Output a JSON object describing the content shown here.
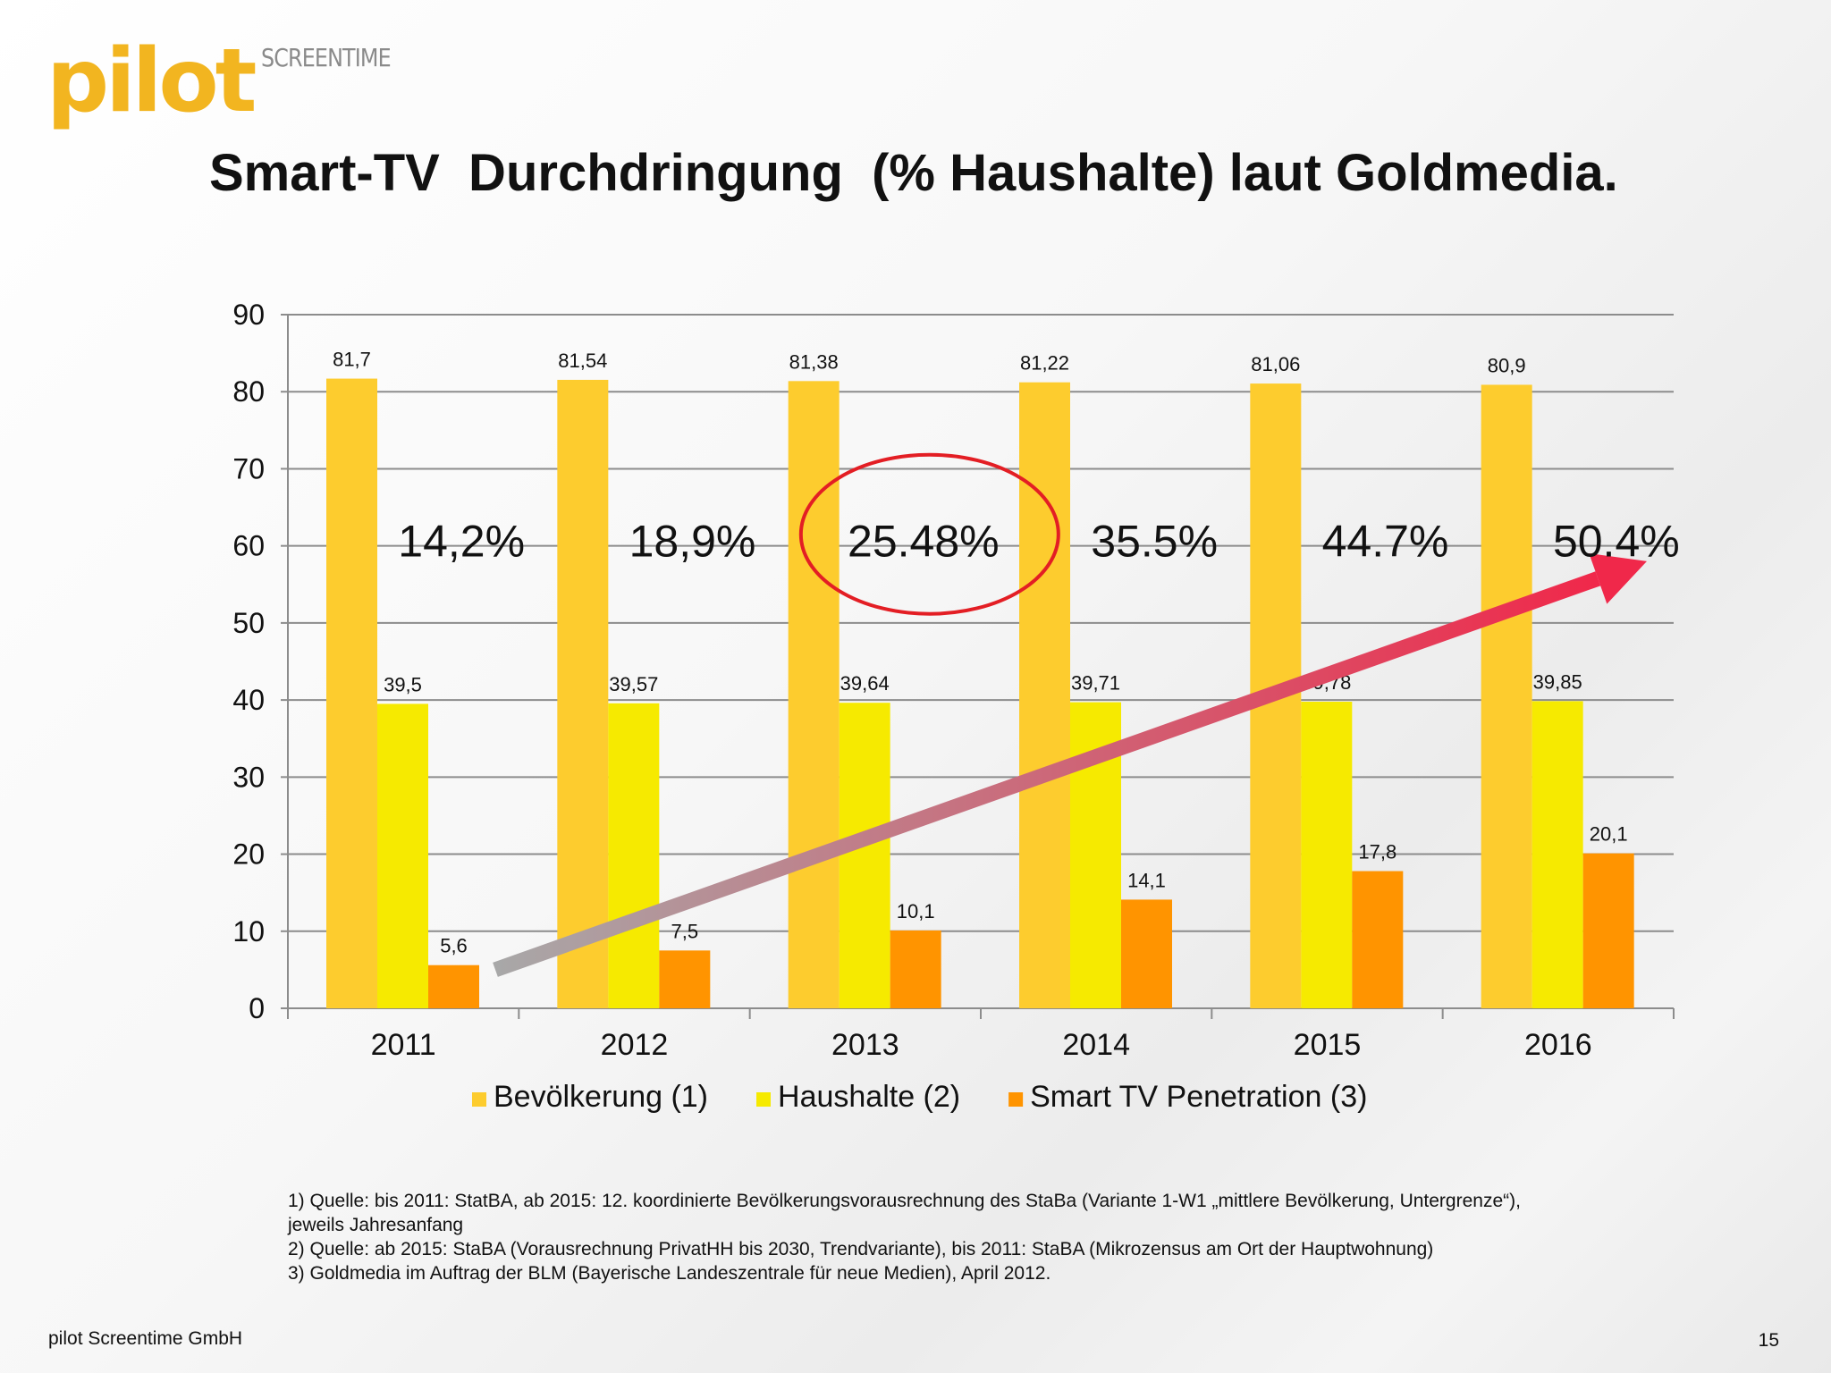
{
  "header": {
    "logo_text": "pilot",
    "logo_subtext": "SCREENTIME",
    "title": "Smart-TV  Durchdringung  (% Haushalte) laut Goldmedia."
  },
  "chart_data": {
    "type": "bar",
    "title": "",
    "xlabel": "",
    "ylabel": "",
    "ylim": [
      0,
      90
    ],
    "yticks": [
      0,
      10,
      20,
      30,
      40,
      50,
      60,
      70,
      80,
      90
    ],
    "grid": true,
    "legend_position": "bottom",
    "categories": [
      "2011",
      "2012",
      "2013",
      "2014",
      "2015",
      "2016"
    ],
    "series": [
      {
        "name": "Bevölkerung (1)",
        "color": "#fdcc2e",
        "values": [
          81.7,
          81.54,
          81.38,
          81.22,
          81.06,
          80.9
        ],
        "labels": [
          "81,7",
          "81,54",
          "81,38",
          "81,22",
          "81,06",
          "80,9"
        ]
      },
      {
        "name": "Haushalte (2)",
        "color": "#f6ea00",
        "values": [
          39.5,
          39.57,
          39.64,
          39.71,
          39.78,
          39.85
        ],
        "labels": [
          "39,5",
          "39,57",
          "39,64",
          "39,71",
          "39,78",
          "39,85"
        ]
      },
      {
        "name": "Smart TV Penetration (3)",
        "color": "#ff9400",
        "values": [
          5.6,
          7.5,
          10.1,
          14.1,
          17.8,
          20.1
        ],
        "labels": [
          "5,6",
          "7,5",
          "10,1",
          "14,1",
          "17,8",
          "20,1"
        ]
      }
    ],
    "annotations": {
      "percentages": [
        "14,2%",
        "18,9%",
        "25.48%",
        "35.5%",
        "44.7%",
        "50.4%"
      ],
      "highlighted_index": 2,
      "highlight_color": "#e31e24",
      "trend_arrow": {
        "from_value": 5,
        "to_value": 58,
        "color_start": "#a8a8a8",
        "color_end": "#f0284a"
      }
    }
  },
  "footnotes": [
    "1) Quelle: bis 2011: StatBA, ab 2015: 12. koordinierte Bevölkerungsvorausrechnung des StaBa (Variante 1-W1 „mittlere Bevölkerung, Untergrenze“),",
    "jeweils Jahresanfang",
    "2) Quelle: ab 2015: StaBA (Vorausrechnung PrivatHH bis 2030, Trendvariante), bis 2011: StaBA (Mikrozensus am Ort der Hauptwohnung)",
    "3) Goldmedia im Auftrag der BLM (Bayerische Landeszentrale für neue Medien), April 2012."
  ],
  "footer": {
    "company": "pilot Screentime GmbH",
    "page_number": "15"
  }
}
